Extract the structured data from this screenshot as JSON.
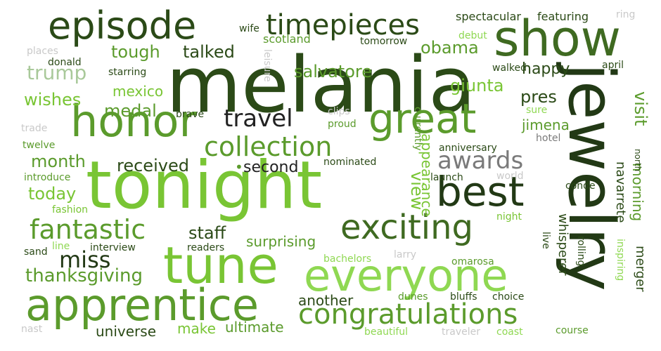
{
  "palette": {
    "dark": "#2b4a17",
    "darker": "#223915",
    "mid": "#3f6a21",
    "green": "#5b9b2c",
    "bright": "#79c534",
    "light": "#8fd852",
    "pale": "#a9c99a",
    "gray": "#7a7a7a",
    "lightgray": "#c9c9c9",
    "black": "#222222"
  },
  "words": [
    {
      "id": "melania",
      "text": "melania",
      "color": "dark"
    },
    {
      "id": "tonight",
      "text": "tonight",
      "color": "bright"
    },
    {
      "id": "jewelry",
      "text": "jewelry",
      "color": "darker"
    },
    {
      "id": "show",
      "text": "show",
      "color": "mid"
    },
    {
      "id": "tune",
      "text": "tune",
      "color": "bright"
    },
    {
      "id": "apprentice",
      "text": "apprentice",
      "color": "green"
    },
    {
      "id": "everyone",
      "text": "everyone",
      "color": "light"
    },
    {
      "id": "honor",
      "text": "honor",
      "color": "green"
    },
    {
      "id": "great",
      "text": "great",
      "color": "green"
    },
    {
      "id": "episode",
      "text": "episode",
      "color": "dark"
    },
    {
      "id": "best",
      "text": "best",
      "color": "darker"
    },
    {
      "id": "exciting",
      "text": "exciting",
      "color": "mid"
    },
    {
      "id": "congratulations",
      "text": "congratulations",
      "color": "green"
    },
    {
      "id": "timepieces",
      "text": "timepieces",
      "color": "dark"
    },
    {
      "id": "collection",
      "text": "collection",
      "color": "green"
    },
    {
      "id": "fantastic",
      "text": "fantastic",
      "color": "green"
    },
    {
      "id": "travel",
      "text": "travel",
      "color": "black"
    },
    {
      "id": "awards",
      "text": "awards",
      "color": "gray"
    },
    {
      "id": "miss",
      "text": "miss",
      "color": "darker"
    },
    {
      "id": "thanksgiving",
      "text": "thanksgiving",
      "color": "green"
    },
    {
      "id": "trump",
      "text": "trump",
      "color": "pale"
    },
    {
      "id": "tough",
      "text": "tough",
      "color": "green"
    },
    {
      "id": "talked",
      "text": "talked",
      "color": "dark"
    },
    {
      "id": "salvatore",
      "text": "salvatore",
      "color": "green"
    },
    {
      "id": "obama",
      "text": "obama",
      "color": "green"
    },
    {
      "id": "happy",
      "text": "happy",
      "color": "dark"
    },
    {
      "id": "giunta",
      "text": "giunta",
      "color": "bright"
    },
    {
      "id": "pres",
      "text": "pres",
      "color": "dark"
    },
    {
      "id": "visit",
      "text": "visit",
      "color": "green"
    },
    {
      "id": "wishes",
      "text": "wishes",
      "color": "bright"
    },
    {
      "id": "medal",
      "text": "medal",
      "color": "green"
    },
    {
      "id": "mexico",
      "text": "mexico",
      "color": "bright"
    },
    {
      "id": "month",
      "text": "month",
      "color": "green"
    },
    {
      "id": "received",
      "text": "received",
      "color": "dark"
    },
    {
      "id": "second",
      "text": "second",
      "color": "black"
    },
    {
      "id": "today",
      "text": "today",
      "color": "bright"
    },
    {
      "id": "staff",
      "text": "staff",
      "color": "dark"
    },
    {
      "id": "surprising",
      "text": "surprising",
      "color": "green"
    },
    {
      "id": "view",
      "text": "view",
      "color": "bright"
    },
    {
      "id": "appearance",
      "text": "appearance",
      "color": "bright"
    },
    {
      "id": "morning",
      "text": "morning",
      "color": "green"
    },
    {
      "id": "jimena",
      "text": "jimena",
      "color": "green"
    },
    {
      "id": "navarrete",
      "text": "navarrete",
      "color": "dark"
    },
    {
      "id": "merger",
      "text": "merger",
      "color": "dark"
    },
    {
      "id": "whisperer",
      "text": "whisperer",
      "color": "dark"
    },
    {
      "id": "universe",
      "text": "universe",
      "color": "dark"
    },
    {
      "id": "make",
      "text": "make",
      "color": "bright"
    },
    {
      "id": "ultimate",
      "text": "ultimate",
      "color": "green"
    },
    {
      "id": "another",
      "text": "another",
      "color": "dark"
    },
    {
      "id": "spectacular",
      "text": "spectacular",
      "color": "dark"
    },
    {
      "id": "featuring",
      "text": "featuring",
      "color": "dark"
    },
    {
      "id": "scotland",
      "text": "scotland",
      "color": "green"
    },
    {
      "id": "tomorrow",
      "text": "tomorrow",
      "color": "dark"
    },
    {
      "id": "wife",
      "text": "wife",
      "color": "dark"
    },
    {
      "id": "debut",
      "text": "debut",
      "color": "light"
    },
    {
      "id": "places",
      "text": "places",
      "color": "lightgray"
    },
    {
      "id": "donald",
      "text": "donald",
      "color": "dark"
    },
    {
      "id": "leisure",
      "text": "leisure",
      "color": "lightgray"
    },
    {
      "id": "starring",
      "text": "starring",
      "color": "dark"
    },
    {
      "id": "walked",
      "text": "walked",
      "color": "dark"
    },
    {
      "id": "april",
      "text": "april",
      "color": "dark"
    },
    {
      "id": "brave",
      "text": "brave",
      "color": "dark"
    },
    {
      "id": "clips",
      "text": "clips",
      "color": "lightgray"
    },
    {
      "id": "proud",
      "text": "proud",
      "color": "green"
    },
    {
      "id": "currently",
      "text": "currently",
      "color": "green"
    },
    {
      "id": "sure",
      "text": "sure",
      "color": "light"
    },
    {
      "id": "hotel",
      "text": "hotel",
      "color": "gray"
    },
    {
      "id": "trade",
      "text": "trade",
      "color": "lightgray"
    },
    {
      "id": "twelve",
      "text": "twelve",
      "color": "green"
    },
    {
      "id": "introduce",
      "text": "introduce",
      "color": "green"
    },
    {
      "id": "anniversary",
      "text": "anniversary",
      "color": "dark"
    },
    {
      "id": "nominated",
      "text": "nominated",
      "color": "dark"
    },
    {
      "id": "launch",
      "text": "launch",
      "color": "dark"
    },
    {
      "id": "world",
      "text": "world",
      "color": "lightgray"
    },
    {
      "id": "north",
      "text": "north",
      "color": "dark"
    },
    {
      "id": "conde",
      "text": "conde",
      "color": "dark"
    },
    {
      "id": "fashion",
      "text": "fashion",
      "color": "bright"
    },
    {
      "id": "night",
      "text": "night",
      "color": "bright"
    },
    {
      "id": "live",
      "text": "live",
      "color": "dark"
    },
    {
      "id": "rolling",
      "text": "rolling",
      "color": "dark"
    },
    {
      "id": "inspiring",
      "text": "inspiring",
      "color": "light"
    },
    {
      "id": "sand",
      "text": "sand",
      "color": "dark"
    },
    {
      "id": "line",
      "text": "line",
      "color": "light"
    },
    {
      "id": "interview",
      "text": "interview",
      "color": "dark"
    },
    {
      "id": "readers",
      "text": "readers",
      "color": "dark"
    },
    {
      "id": "larry",
      "text": "larry",
      "color": "lightgray"
    },
    {
      "id": "bachelors",
      "text": "bachelors",
      "color": "light"
    },
    {
      "id": "omarosa",
      "text": "omarosa",
      "color": "green"
    },
    {
      "id": "dunes",
      "text": "dunes",
      "color": "green"
    },
    {
      "id": "bluffs",
      "text": "bluffs",
      "color": "dark"
    },
    {
      "id": "choice",
      "text": "choice",
      "color": "dark"
    },
    {
      "id": "nast",
      "text": "nast",
      "color": "lightgray"
    },
    {
      "id": "beautiful",
      "text": "beautiful",
      "color": "light"
    },
    {
      "id": "traveler",
      "text": "traveler",
      "color": "lightgray"
    },
    {
      "id": "coast",
      "text": "coast",
      "color": "light"
    },
    {
      "id": "course",
      "text": "course",
      "color": "green"
    },
    {
      "id": "dot",
      "text": "•",
      "color": "green"
    },
    {
      "id": "ring",
      "text": "ring",
      "color": "lightgray"
    }
  ]
}
